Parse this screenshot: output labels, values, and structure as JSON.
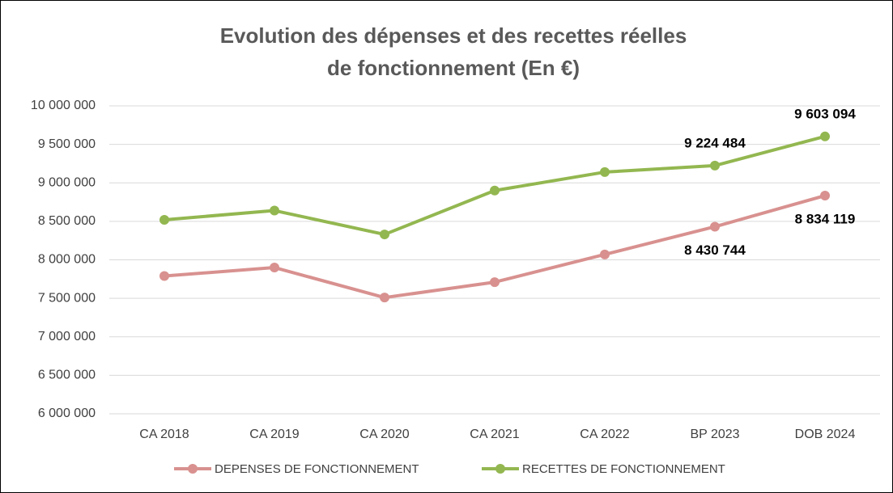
{
  "chart_data": {
    "type": "line",
    "title": [
      "Evolution des dépenses et des recettes réelles",
      "de fonctionnement (En €)"
    ],
    "categories": [
      "CA 2018",
      "CA 2019",
      "CA 2020",
      "CA 2021",
      "CA 2022",
      "BP 2023",
      "DOB 2024"
    ],
    "series": [
      {
        "name": "DEPENSES DE FONCTIONNEMENT",
        "color": "#d8918f",
        "values": [
          7790000,
          7900000,
          7510000,
          7710000,
          8070000,
          8430744,
          8834119
        ],
        "value_labels": [
          null,
          null,
          null,
          null,
          null,
          "8 430 744",
          "8 834 119"
        ]
      },
      {
        "name": "RECETTES DE FONCTIONNEMENT",
        "color": "#93b750",
        "values": [
          8520000,
          8640000,
          8330000,
          8900000,
          9140000,
          9224484,
          9603094
        ],
        "value_labels": [
          null,
          null,
          null,
          null,
          null,
          "9 224 484",
          "9 603 094"
        ]
      }
    ],
    "ylim": [
      6000000,
      10000000
    ],
    "yticks": [
      {
        "value": 6000000,
        "label": "6 000 000"
      },
      {
        "value": 6500000,
        "label": "6 500 000"
      },
      {
        "value": 7000000,
        "label": "7 000 000"
      },
      {
        "value": 7500000,
        "label": "7 500 000"
      },
      {
        "value": 8000000,
        "label": "8 000 000"
      },
      {
        "value": 8500000,
        "label": "8 500 000"
      },
      {
        "value": 9000000,
        "label": "9 000 000"
      },
      {
        "value": 9500000,
        "label": "9 500 000"
      },
      {
        "value": 10000000,
        "label": "10 000 000"
      }
    ],
    "grid": true,
    "legend": "bottom"
  }
}
